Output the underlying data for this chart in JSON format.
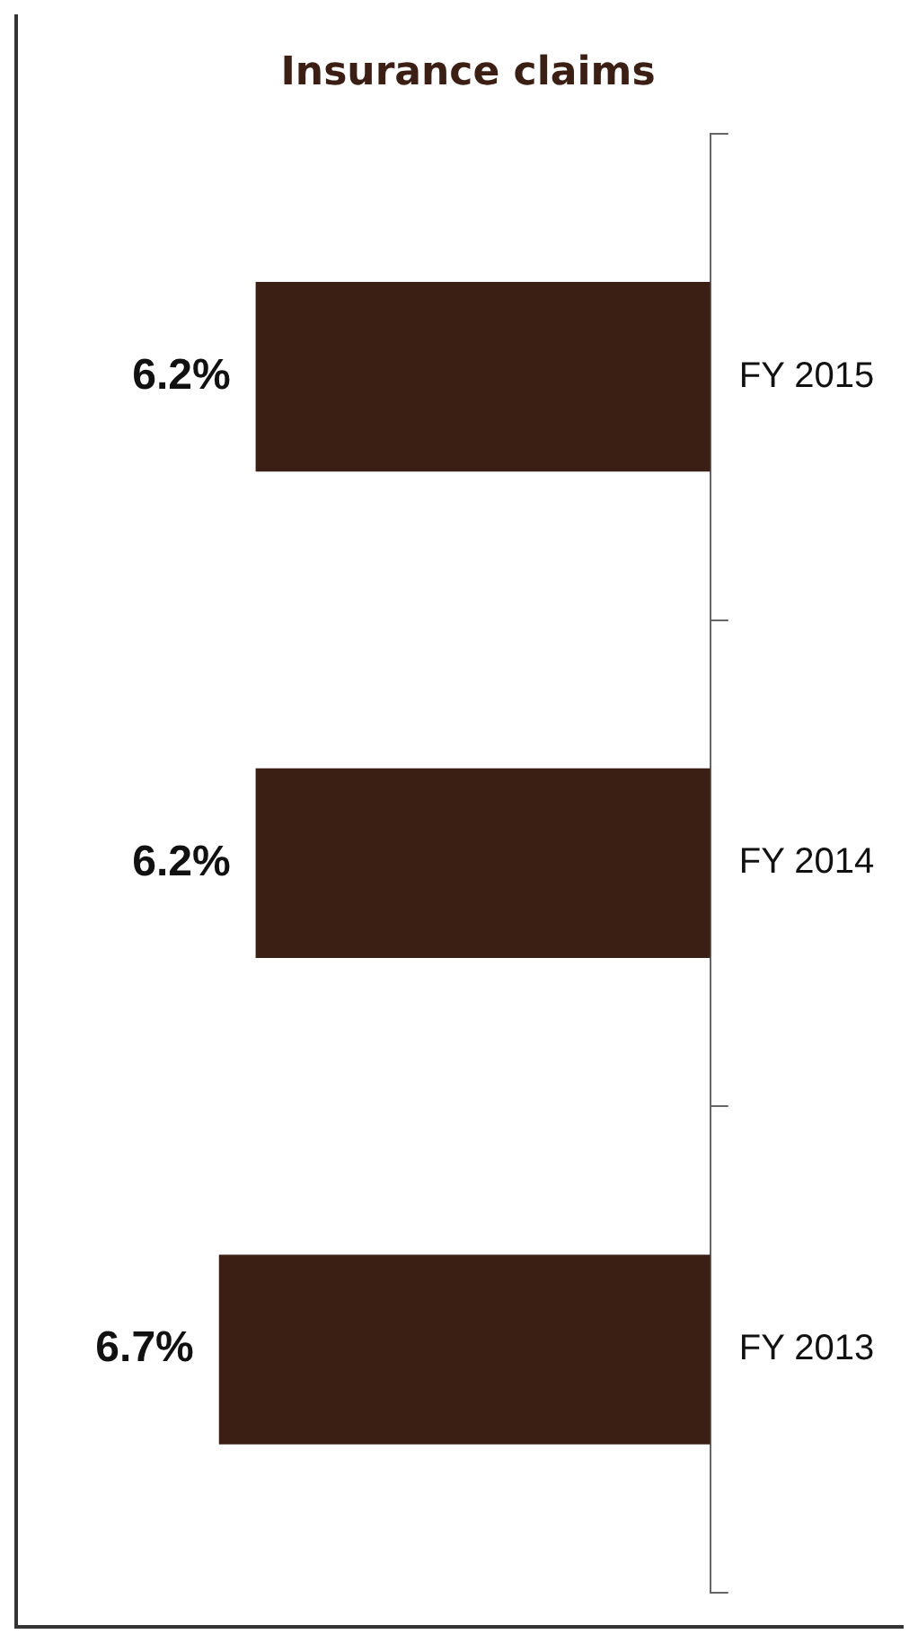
{
  "chart_data": {
    "type": "bar",
    "orientation": "horizontal",
    "title": "Insurance claims",
    "categories": [
      "FY 2015",
      "FY 2014",
      "FY 2013"
    ],
    "values": [
      6.2,
      6.2,
      6.7
    ],
    "value_labels": [
      "6.2%",
      "6.2%",
      "6.7%"
    ],
    "color": "#3b1f14",
    "grid": false,
    "legend": false,
    "tick_labels": "y"
  }
}
